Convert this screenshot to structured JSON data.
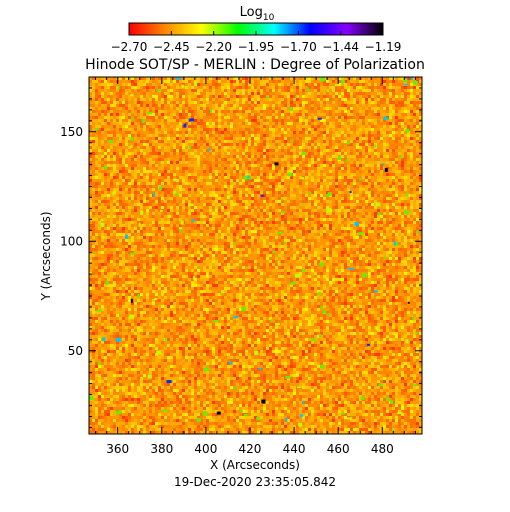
{
  "chart_data": {
    "type": "heatmap",
    "title": "Hinode SOT/SP - MERLIN : Degree of Polarization",
    "xlabel": "X (Arcseconds)",
    "ylabel": "Y (Arcseconds)",
    "timestamp": "19-Dec-2020 23:35:05.842",
    "xlim": [
      347,
      498
    ],
    "ylim": [
      12,
      175
    ],
    "xticks": [
      "360",
      "380",
      "400",
      "420",
      "440",
      "460",
      "480"
    ],
    "yticks": [
      "50",
      "100",
      "150"
    ],
    "colorbar": {
      "label_base": "Log",
      "label_sub": "10",
      "range": [
        -2.7,
        -1.19
      ],
      "ticks": [
        "−2.70",
        "−2.45",
        "−2.20",
        "−1.95",
        "−1.70",
        "−1.44",
        "−1.19"
      ],
      "colors": [
        "#ff0000",
        "#ff8800",
        "#ffff00",
        "#00ff00",
        "#00ffff",
        "#0000ff",
        "#8800ff",
        "#000000"
      ]
    }
  }
}
